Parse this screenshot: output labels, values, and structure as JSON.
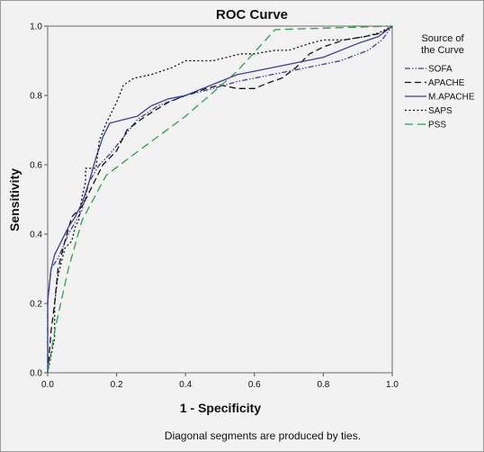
{
  "chart_data": {
    "type": "line",
    "title": "ROC Curve",
    "xlabel": "1 - Specificity",
    "ylabel": "Sensitivity",
    "xlim": [
      0,
      1
    ],
    "ylim": [
      0,
      1
    ],
    "x_ticks": [
      "0.0",
      "0.2",
      "0.4",
      "0.6",
      "0.8",
      "1.0"
    ],
    "y_ticks": [
      "0.0",
      "0.2",
      "0.4",
      "0.6",
      "0.8",
      "1.0"
    ],
    "grid": false,
    "legend_title_lines": [
      "Source of",
      "the Curve"
    ],
    "legend_placement": "right",
    "footnote": "Diagonal segments are produced by ties.",
    "series": [
      {
        "name": "SOFA",
        "color": "#3b3f9a",
        "dash": "dash-dot-dot",
        "points": [
          [
            0,
            0
          ],
          [
            0,
            0.2
          ],
          [
            0.01,
            0.3
          ],
          [
            0.03,
            0.33
          ],
          [
            0.06,
            0.4
          ],
          [
            0.1,
            0.47
          ],
          [
            0.12,
            0.55
          ],
          [
            0.15,
            0.6
          ],
          [
            0.18,
            0.63
          ],
          [
            0.22,
            0.68
          ],
          [
            0.26,
            0.73
          ],
          [
            0.32,
            0.77
          ],
          [
            0.4,
            0.8
          ],
          [
            0.48,
            0.82
          ],
          [
            0.55,
            0.84
          ],
          [
            0.65,
            0.86
          ],
          [
            0.75,
            0.88
          ],
          [
            0.85,
            0.9
          ],
          [
            0.93,
            0.93
          ],
          [
            0.97,
            0.96
          ],
          [
            1,
            1
          ]
        ]
      },
      {
        "name": "APACHE",
        "color": "#111111",
        "dash": "dash",
        "points": [
          [
            0,
            0
          ],
          [
            0.01,
            0.12
          ],
          [
            0.02,
            0.2
          ],
          [
            0.03,
            0.3
          ],
          [
            0.05,
            0.38
          ],
          [
            0.07,
            0.45
          ],
          [
            0.1,
            0.48
          ],
          [
            0.12,
            0.52
          ],
          [
            0.14,
            0.56
          ],
          [
            0.16,
            0.6
          ],
          [
            0.2,
            0.64
          ],
          [
            0.23,
            0.7
          ],
          [
            0.27,
            0.73
          ],
          [
            0.3,
            0.75
          ],
          [
            0.35,
            0.78
          ],
          [
            0.4,
            0.8
          ],
          [
            0.46,
            0.82
          ],
          [
            0.5,
            0.83
          ],
          [
            0.55,
            0.82
          ],
          [
            0.6,
            0.82
          ],
          [
            0.65,
            0.84
          ],
          [
            0.68,
            0.85
          ],
          [
            0.72,
            0.88
          ],
          [
            0.76,
            0.92
          ],
          [
            0.8,
            0.94
          ],
          [
            0.86,
            0.96
          ],
          [
            0.92,
            0.97
          ],
          [
            0.97,
            0.98
          ],
          [
            1,
            1
          ]
        ]
      },
      {
        "name": "M.APACHE",
        "color": "#3b3f9a",
        "dash": "solid",
        "points": [
          [
            0,
            0
          ],
          [
            0,
            0.21
          ],
          [
            0.01,
            0.3
          ],
          [
            0.02,
            0.34
          ],
          [
            0.04,
            0.38
          ],
          [
            0.06,
            0.42
          ],
          [
            0.08,
            0.45
          ],
          [
            0.1,
            0.49
          ],
          [
            0.12,
            0.55
          ],
          [
            0.14,
            0.62
          ],
          [
            0.16,
            0.68
          ],
          [
            0.18,
            0.72
          ],
          [
            0.22,
            0.73
          ],
          [
            0.26,
            0.74
          ],
          [
            0.3,
            0.77
          ],
          [
            0.35,
            0.79
          ],
          [
            0.4,
            0.8
          ],
          [
            0.45,
            0.82
          ],
          [
            0.5,
            0.84
          ],
          [
            0.55,
            0.86
          ],
          [
            0.6,
            0.87
          ],
          [
            0.7,
            0.89
          ],
          [
            0.8,
            0.91
          ],
          [
            0.9,
            0.95
          ],
          [
            0.96,
            0.97
          ],
          [
            1,
            1
          ]
        ]
      },
      {
        "name": "SAPS",
        "color": "#111111",
        "dash": "dot",
        "points": [
          [
            0,
            0
          ],
          [
            0.01,
            0.05
          ],
          [
            0.02,
            0.1
          ],
          [
            0.02,
            0.2
          ],
          [
            0.03,
            0.28
          ],
          [
            0.05,
            0.36
          ],
          [
            0.07,
            0.38
          ],
          [
            0.08,
            0.42
          ],
          [
            0.09,
            0.44
          ],
          [
            0.1,
            0.51
          ],
          [
            0.11,
            0.55
          ],
          [
            0.11,
            0.59
          ],
          [
            0.14,
            0.59
          ],
          [
            0.15,
            0.67
          ],
          [
            0.17,
            0.72
          ],
          [
            0.2,
            0.78
          ],
          [
            0.22,
            0.83
          ],
          [
            0.25,
            0.85
          ],
          [
            0.3,
            0.86
          ],
          [
            0.33,
            0.87
          ],
          [
            0.36,
            0.88
          ],
          [
            0.38,
            0.89
          ],
          [
            0.4,
            0.9
          ],
          [
            0.44,
            0.9
          ],
          [
            0.48,
            0.9
          ],
          [
            0.52,
            0.91
          ],
          [
            0.56,
            0.92
          ],
          [
            0.6,
            0.92
          ],
          [
            0.66,
            0.93
          ],
          [
            0.7,
            0.93
          ],
          [
            0.76,
            0.95
          ],
          [
            0.8,
            0.96
          ],
          [
            0.86,
            0.96
          ],
          [
            0.92,
            0.97
          ],
          [
            0.96,
            0.98
          ],
          [
            1,
            1
          ]
        ]
      },
      {
        "name": "PSS",
        "color": "#2e9e4f",
        "dash": "longdash",
        "points": [
          [
            0,
            0
          ],
          [
            0.02,
            0.12
          ],
          [
            0.06,
            0.3
          ],
          [
            0.1,
            0.44
          ],
          [
            0.17,
            0.57
          ],
          [
            0.25,
            0.63
          ],
          [
            0.4,
            0.74
          ],
          [
            0.47,
            0.8
          ],
          [
            0.55,
            0.87
          ],
          [
            0.66,
            0.99
          ],
          [
            1,
            1
          ]
        ]
      }
    ]
  }
}
